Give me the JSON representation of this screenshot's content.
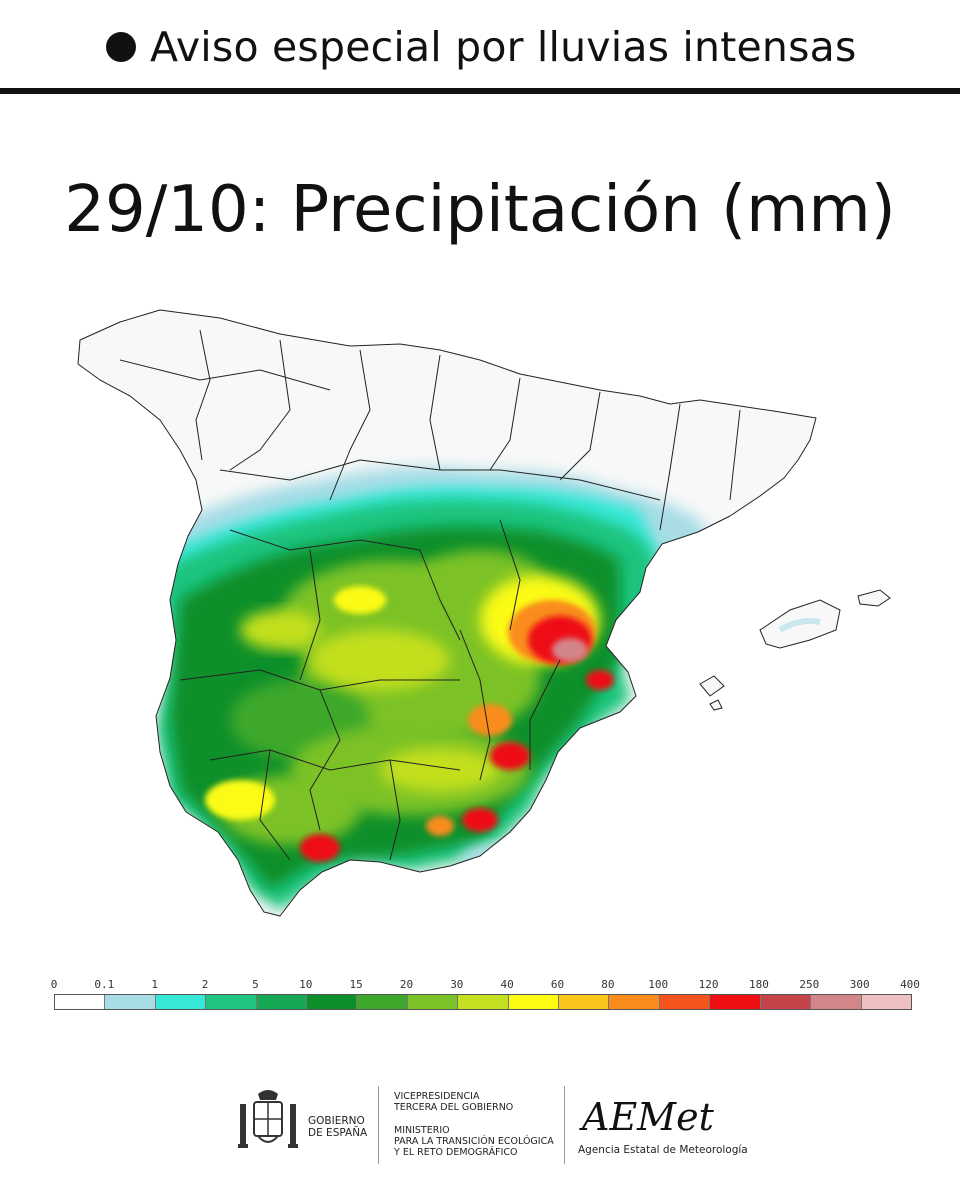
{
  "header": {
    "title": "Aviso especial por lluvias intensas"
  },
  "main": {
    "title": "29/10: Precipitación (mm)"
  },
  "legend": {
    "ticks": [
      "0",
      "0.1",
      "1",
      "2",
      "5",
      "10",
      "15",
      "20",
      "30",
      "40",
      "60",
      "80",
      "100",
      "120",
      "180",
      "250",
      "300",
      "400"
    ],
    "colors": [
      "#ffffff",
      "#a8dde6",
      "#35e8d8",
      "#1fc47e",
      "#16a852",
      "#0b8f2a",
      "#3ea82c",
      "#7bc228",
      "#c3df1f",
      "#fbfb14",
      "#f9c51a",
      "#f98c1a",
      "#f6541b",
      "#ee0f12",
      "#c44449",
      "#d4858a",
      "#efc0c2"
    ]
  },
  "footer": {
    "gob_line1": "GOBIERNO",
    "gob_line2": "DE ESPAÑA",
    "vice_line1": "VICEPRESIDENCIA",
    "vice_line2": "TERCERA DEL GOBIERNO",
    "min_line1": "MINISTERIO",
    "min_line2": "PARA LA TRANSICIÓN ECOLÓGICA",
    "min_line3": "Y EL RETO DEMOGRÁFICO",
    "aemet_logo": "AEMet",
    "aemet_subtitle": "Agencia Estatal de Meteorología"
  },
  "map": {
    "region": "Peninsular Spain and Balearic Islands",
    "max_intensity_zone": "Valencia interior (180-250 mm)"
  }
}
